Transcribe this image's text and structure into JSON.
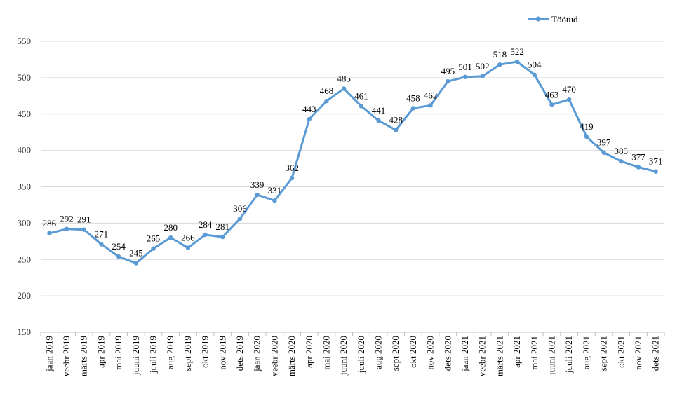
{
  "chart_data": {
    "type": "line",
    "title": "",
    "xlabel": "",
    "ylabel": "",
    "ylim": [
      150,
      550
    ],
    "yticks": [
      150,
      200,
      250,
      300,
      350,
      400,
      450,
      500,
      550
    ],
    "grid": true,
    "legend_position": "top-right",
    "categories": [
      "jaan 2019",
      "veebr 2019",
      "märts 2019",
      "apr 2019",
      "mai 2019",
      "juuni 2019",
      "juuli 2019",
      "aug 2019",
      "sept 2019",
      "okt 2019",
      "nov 2019",
      "dets 2019",
      "jaan 2020",
      "veebr 2020",
      "märts 2020",
      "apr 2020",
      "mai 2020",
      "juuni 2020",
      "juuli 2020",
      "aug 2020",
      "sept 2020",
      "okt 2020",
      "nov 2020",
      "dets 2020",
      "jaan 2021",
      "veebr 2021",
      "märts 2021",
      "apr 2021",
      "mai 2021",
      "juuni 2021",
      "juuli 2021",
      "aug 2021",
      "sept 2021",
      "okt 2021",
      "nov 2021",
      "dets 2021"
    ],
    "series": [
      {
        "name": "Töötud",
        "color": "#5B9BD5",
        "values": [
          286,
          292,
          291,
          271,
          254,
          245,
          265,
          280,
          266,
          284,
          281,
          306,
          339,
          331,
          362,
          443,
          468,
          485,
          461,
          441,
          428,
          458,
          462,
          495,
          501,
          502,
          518,
          522,
          504,
          463,
          470,
          419,
          397,
          385,
          377,
          371
        ]
      }
    ]
  }
}
